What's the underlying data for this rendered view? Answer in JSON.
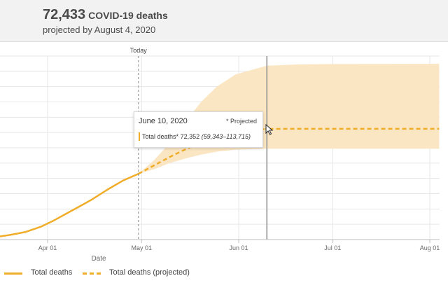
{
  "header": {
    "value": "72,433",
    "label": "COVID-19 deaths",
    "subtitle": "projected by August 4, 2020"
  },
  "chart_data": {
    "type": "line",
    "xlabel": "Date",
    "ylabel": "",
    "x_ticks": [
      "Apr 01",
      "May 01",
      "Jun 01",
      "Jul 01",
      "Aug 01"
    ],
    "today_label": "Today",
    "today_date": "2020-04-30",
    "grid": true,
    "legend_position": "bottom-left",
    "series": [
      {
        "name": "Total deaths",
        "style": "solid",
        "color": "#f0ad2a",
        "points": [
          [
            "2020-02-29",
            0
          ],
          [
            "2020-03-05",
            200
          ],
          [
            "2020-03-10",
            700
          ],
          [
            "2020-03-15",
            1500
          ],
          [
            "2020-03-20",
            3000
          ],
          [
            "2020-03-25",
            5000
          ],
          [
            "2020-03-30",
            8500
          ],
          [
            "2020-04-03",
            12500
          ],
          [
            "2020-04-07",
            17000
          ],
          [
            "2020-04-11",
            21500
          ],
          [
            "2020-04-15",
            26000
          ],
          [
            "2020-04-20",
            32500
          ],
          [
            "2020-04-25",
            38500
          ],
          [
            "2020-04-30",
            43000
          ]
        ]
      },
      {
        "name": "Total deaths (projected)",
        "style": "dashed",
        "color": "#f0ad2a",
        "points": [
          [
            "2020-04-30",
            43000
          ],
          [
            "2020-05-05",
            48500
          ],
          [
            "2020-05-10",
            54000
          ],
          [
            "2020-05-15",
            59000
          ],
          [
            "2020-05-20",
            63500
          ],
          [
            "2020-05-25",
            67500
          ],
          [
            "2020-05-31",
            70500
          ],
          [
            "2020-06-10",
            72352
          ],
          [
            "2020-06-20",
            72420
          ],
          [
            "2020-07-01",
            72433
          ],
          [
            "2020-08-04",
            72433
          ]
        ]
      }
    ],
    "uncertainty_band": {
      "color": "#fbe6c3",
      "points": [
        [
          "2020-04-30",
          43000,
          43000
        ],
        [
          "2020-05-05",
          46000,
          52000
        ],
        [
          "2020-05-10",
          50000,
          63000
        ],
        [
          "2020-05-15",
          53000,
          77000
        ],
        [
          "2020-05-20",
          55500,
          90000
        ],
        [
          "2020-05-25",
          57500,
          100000
        ],
        [
          "2020-05-31",
          58800,
          108000
        ],
        [
          "2020-06-10",
          59343,
          113715
        ],
        [
          "2020-06-20",
          59343,
          114500
        ],
        [
          "2020-07-01",
          59343,
          114800
        ],
        [
          "2020-08-04",
          59343,
          114900
        ]
      ]
    },
    "tooltip": {
      "date": "June 10, 2020",
      "projected_note": "* Projected",
      "series_label": "Total deaths*",
      "value": "72,352",
      "range": "(59,343–113,715)"
    },
    "hover_date": "2020-06-10"
  }
}
